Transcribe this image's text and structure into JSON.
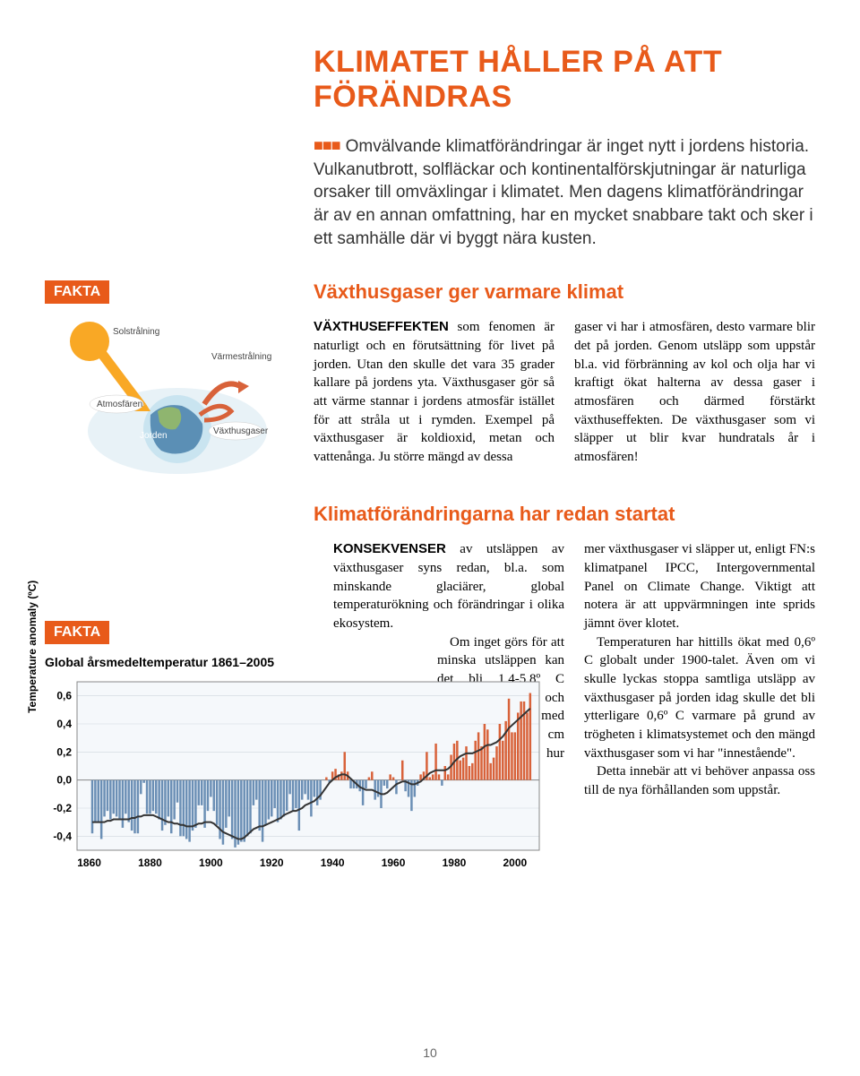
{
  "title": "KLIMATET HÅLLER PÅ ATT FÖRÄNDRAS",
  "title_color": "#e85a1a",
  "title_fontsize": 34,
  "squares_glyph": "■■■",
  "intro": "Omvälvande klimatförändringar är inget nytt i jordens historia. Vulkanutbrott, solfläckar och kontinentalförskjutningar är naturliga orsaker till omväxlingar i klimatet. Men dagens klimatförändringar är av en annan omfattning, har en mycket snabbare takt och sker i ett samhälle där vi byggt nära kusten.",
  "fakta_label": "FAKTA",
  "section1": {
    "title": "Växthusgaser ger varmare klimat",
    "lead": "VÄXTHUSEFFEKTEN",
    "col1_rest": " som fenomen är naturligt och en förutsättning för livet på jorden. Utan den skulle det vara 35 grader kallare på jordens yta. Växthusgaser gör så att värme stannar i jordens atmosfär istället för att stråla ut i rymden. Exempel på växthusgaser är koldioxid, metan och vattenånga. Ju större mängd av dessa",
    "col2": "gaser vi har i atmosfären, desto varmare blir det på jorden. Genom utsläpp som uppstår bl.a. vid förbränning av kol och olja har vi kraftigt ökat halterna av dessa gaser i atmosfären och därmed förstärkt växthuseffekten. De växthusgaser som vi släpper ut blir kvar hundratals år i atmosfären!",
    "diagram": {
      "labels": {
        "sun": "Solstrålning",
        "heat": "Värmestrålning",
        "atmos": "Atmosfären",
        "earth": "Jorden",
        "gas": "Växthusgaser"
      },
      "sun_color": "#f9a825",
      "earth_color": "#5b8fb5",
      "land_color": "#8fb56f",
      "ocean_color": "#c9e4f0",
      "atmos_bg": "#e8f2f7",
      "arrow_sun": "#f9a825",
      "arrow_heat": "#d8623a"
    }
  },
  "section2": {
    "title": "Klimatförändringarna har redan startat",
    "lead": "KONSEKVENSER",
    "col1a": " av utsläppen av växthusgaser syns redan, bl.a. som minskande glaciärer, global temperaturökning och förändringar i olika ekosystem.",
    "col1b": "Om inget görs för att minska utsläppen kan det bli 1,4-5,8º C varmare på jorden och havsytan kan stiga med mellan ca 20-60 cm beroende på hur mycket",
    "col2a": "mer växthusgaser vi släpper ut, enligt FN:s klimatpanel IPCC, Intergovernmental Panel on Climate Change. Viktigt att notera är att uppvärmningen inte sprids jämnt över klotet.",
    "col2b": "Temperaturen har hittills ökat med 0,6º C globalt under 1900-talet. Även om vi skulle lyckas stoppa samtliga utsläpp av växthusgaser på jorden idag skulle det bli ytterligare 0,6º C varmare på grund av trögheten i klimatsystemet och den mängd växthusgaser som vi har \"innestående\".",
    "col2c": "Detta innebär att vi behöver anpassa oss till de nya förhållanden som uppstår."
  },
  "chart": {
    "title": "Global årsmedeltemperatur 1861–2005",
    "ylabel": "Temperature anomaly (ºC)",
    "ylim": [
      -0.5,
      0.7
    ],
    "yticks": [
      -0.4,
      -0.2,
      0.0,
      0.2,
      0.4,
      0.6
    ],
    "ytick_labels": [
      "-0,4",
      "-0,2",
      "0,0",
      "0,2",
      "0,4",
      "0,6"
    ],
    "xticks": [
      1860,
      1880,
      1900,
      1920,
      1940,
      1960,
      1980,
      2000
    ],
    "xtick_labels": [
      "1860",
      "1880",
      "1900",
      "1920",
      "1940",
      "1960",
      "1980",
      "2000"
    ],
    "bar_color": "#d8623a",
    "bar_neg_color": "#6b8fb5",
    "smooth_color": "#333333",
    "grid_color": "#cfd6dd",
    "axis_color": "#888",
    "bg": "#f5f8fb",
    "years_start": 1861,
    "values": [
      -0.38,
      -0.3,
      -0.3,
      -0.42,
      -0.26,
      -0.22,
      -0.28,
      -0.24,
      -0.26,
      -0.28,
      -0.34,
      -0.24,
      -0.3,
      -0.36,
      -0.38,
      -0.38,
      -0.1,
      -0.02,
      -0.24,
      -0.24,
      -0.22,
      -0.24,
      -0.28,
      -0.36,
      -0.32,
      -0.26,
      -0.38,
      -0.28,
      -0.16,
      -0.4,
      -0.4,
      -0.42,
      -0.44,
      -0.36,
      -0.34,
      -0.18,
      -0.18,
      -0.34,
      -0.22,
      -0.12,
      -0.22,
      -0.32,
      -0.42,
      -0.46,
      -0.34,
      -0.26,
      -0.42,
      -0.48,
      -0.46,
      -0.44,
      -0.44,
      -0.4,
      -0.38,
      -0.18,
      -0.14,
      -0.36,
      -0.44,
      -0.32,
      -0.28,
      -0.26,
      -0.2,
      -0.3,
      -0.28,
      -0.26,
      -0.22,
      -0.1,
      -0.22,
      -0.2,
      -0.36,
      -0.14,
      -0.1,
      -0.14,
      -0.26,
      -0.12,
      -0.18,
      -0.14,
      0.0,
      0.02,
      -0.02,
      0.06,
      0.08,
      0.04,
      0.06,
      0.2,
      0.06,
      -0.06,
      -0.06,
      -0.06,
      -0.08,
      -0.18,
      -0.06,
      0.02,
      0.06,
      -0.14,
      -0.12,
      -0.2,
      -0.04,
      -0.06,
      0.04,
      0.02,
      -0.1,
      0.0,
      0.14,
      -0.08,
      -0.12,
      -0.22,
      -0.12,
      -0.04,
      0.04,
      0.06,
      0.2,
      0.02,
      0.04,
      0.26,
      0.04,
      -0.04,
      0.1,
      0.04,
      0.18,
      0.26,
      0.28,
      0.14,
      0.16,
      0.24,
      0.1,
      0.12,
      0.28,
      0.34,
      0.24,
      0.4,
      0.36,
      0.12,
      0.16,
      0.24,
      0.4,
      0.28,
      0.42,
      0.58,
      0.34,
      0.34,
      0.48,
      0.56,
      0.56,
      0.48,
      0.62
    ],
    "smooth": [
      -0.3,
      -0.3,
      -0.3,
      -0.3,
      -0.3,
      -0.29,
      -0.29,
      -0.28,
      -0.28,
      -0.28,
      -0.28,
      -0.28,
      -0.28,
      -0.27,
      -0.27,
      -0.26,
      -0.26,
      -0.25,
      -0.25,
      -0.25,
      -0.25,
      -0.26,
      -0.27,
      -0.28,
      -0.29,
      -0.3,
      -0.3,
      -0.31,
      -0.31,
      -0.32,
      -0.32,
      -0.33,
      -0.33,
      -0.33,
      -0.32,
      -0.31,
      -0.31,
      -0.3,
      -0.3,
      -0.3,
      -0.31,
      -0.33,
      -0.35,
      -0.37,
      -0.38,
      -0.39,
      -0.4,
      -0.41,
      -0.42,
      -0.42,
      -0.41,
      -0.39,
      -0.37,
      -0.35,
      -0.34,
      -0.33,
      -0.33,
      -0.32,
      -0.31,
      -0.3,
      -0.29,
      -0.28,
      -0.27,
      -0.25,
      -0.24,
      -0.23,
      -0.22,
      -0.22,
      -0.21,
      -0.2,
      -0.18,
      -0.17,
      -0.16,
      -0.15,
      -0.13,
      -0.11,
      -0.08,
      -0.05,
      -0.02,
      0.0,
      0.02,
      0.03,
      0.04,
      0.04,
      0.03,
      0.01,
      -0.01,
      -0.03,
      -0.05,
      -0.06,
      -0.07,
      -0.07,
      -0.07,
      -0.08,
      -0.09,
      -0.1,
      -0.1,
      -0.09,
      -0.07,
      -0.05,
      -0.03,
      -0.02,
      -0.01,
      -0.01,
      -0.02,
      -0.03,
      -0.03,
      -0.02,
      -0.01,
      0.01,
      0.03,
      0.05,
      0.06,
      0.07,
      0.07,
      0.07,
      0.07,
      0.08,
      0.1,
      0.13,
      0.15,
      0.17,
      0.18,
      0.19,
      0.19,
      0.19,
      0.2,
      0.21,
      0.22,
      0.24,
      0.25,
      0.25,
      0.26,
      0.27,
      0.29,
      0.31,
      0.34,
      0.37,
      0.39,
      0.41,
      0.43,
      0.45,
      0.47,
      0.49,
      0.51
    ]
  },
  "page_number": "10"
}
